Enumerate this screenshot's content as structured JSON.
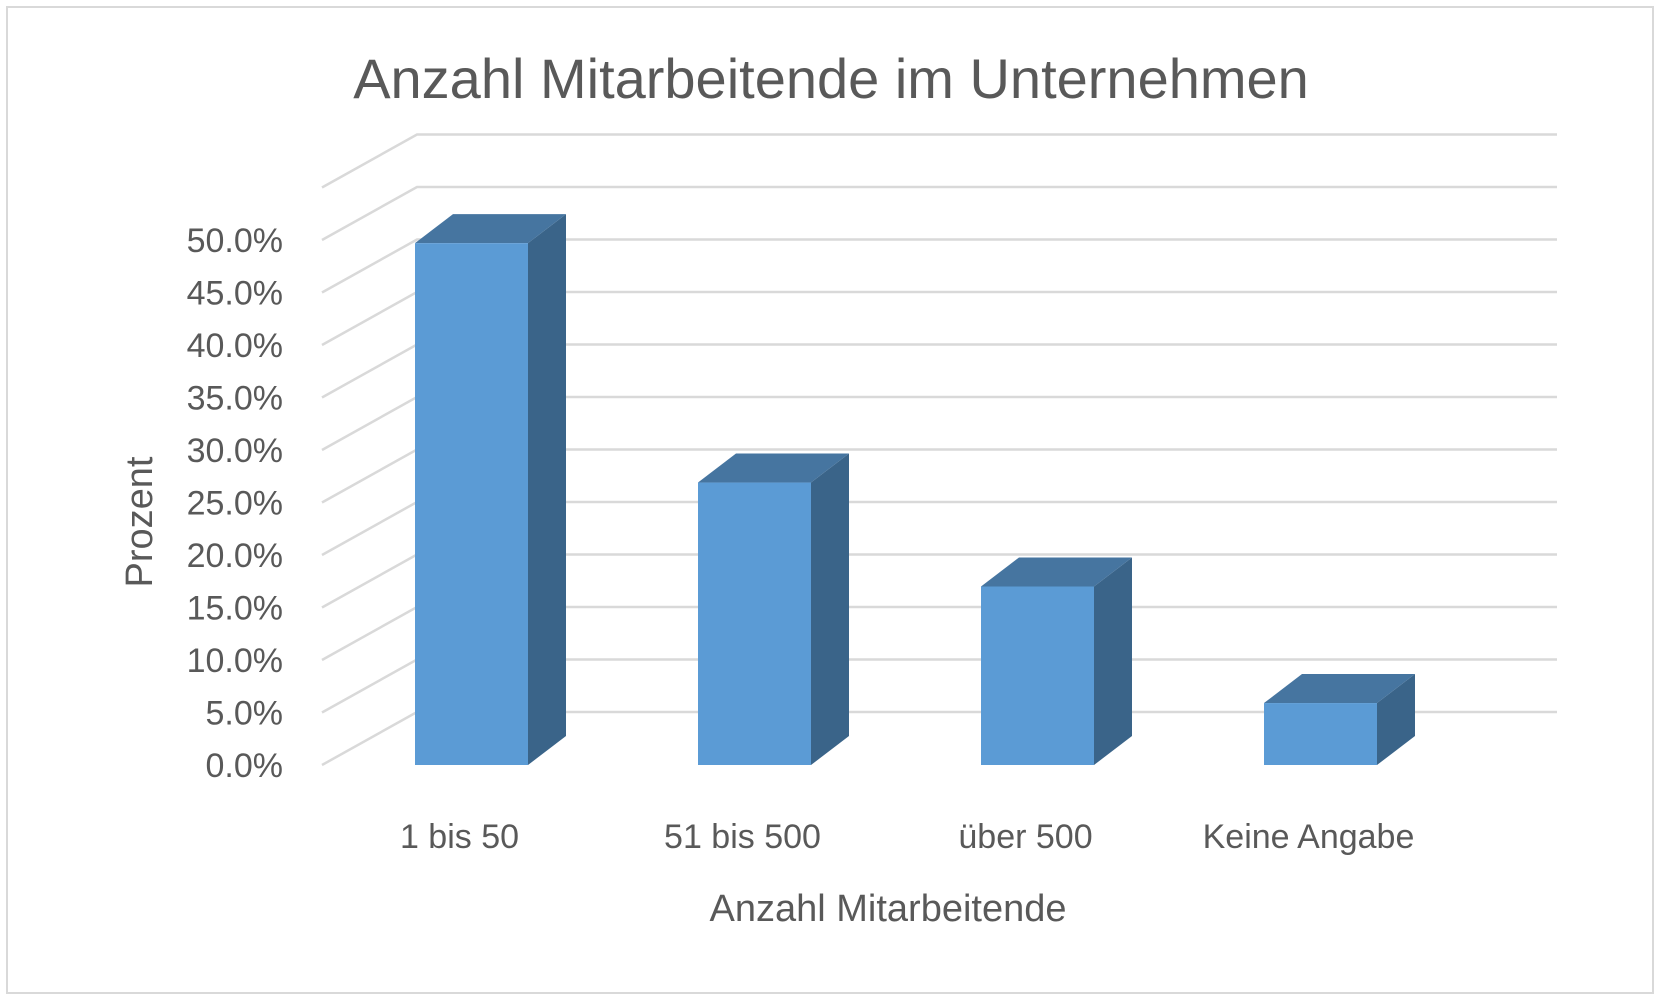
{
  "chart_data": {
    "type": "bar",
    "title": "Anzahl Mitarbeitende im Unternehmen",
    "xlabel": "Anzahl Mitarbeitende",
    "ylabel": "Prozent",
    "categories": [
      "1 bis 50",
      "51 bis 500",
      "über 500",
      "Keine Angabe"
    ],
    "values": [
      49.7,
      26.9,
      17.0,
      5.9
    ],
    "ylim": [
      0,
      55
    ],
    "yticks": [
      "0.0%",
      "5.0%",
      "10.0%",
      "15.0%",
      "20.0%",
      "25.0%",
      "30.0%",
      "35.0%",
      "40.0%",
      "45.0%",
      "50.0%"
    ],
    "grid": true,
    "legend": false,
    "style": "3d-column",
    "colors": {
      "bar_front": "#5b9bd5",
      "bar_side": "#3a6489",
      "bar_top": "#4675a0",
      "grid": "#d9d9d9",
      "text": "#595959"
    }
  }
}
